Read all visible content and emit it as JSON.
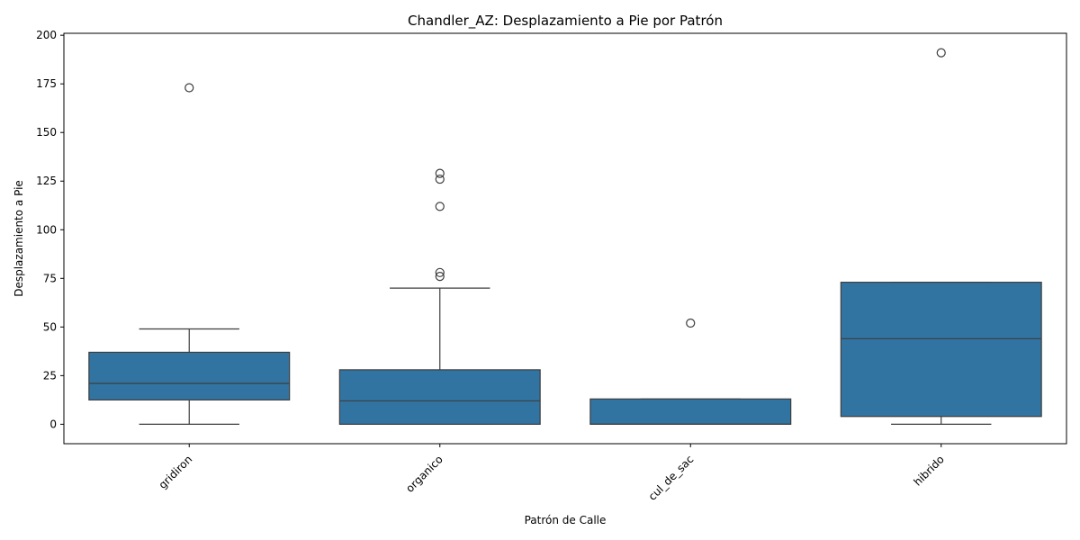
{
  "chart_data": {
    "type": "box",
    "title": "Chandler_AZ: Desplazamiento a Pie por Patrón",
    "xlabel": "Patrón de Calle",
    "ylabel": "Desplazamiento a Pie",
    "ylim": [
      -10,
      201
    ],
    "yticks": [
      0,
      25,
      50,
      75,
      100,
      125,
      150,
      175,
      200
    ],
    "categories": [
      "gridiron",
      "organico",
      "cul_de_sac",
      "hibrido"
    ],
    "boxes": [
      {
        "category": "gridiron",
        "whisker_low": 0,
        "q1": 12.5,
        "median": 21,
        "q3": 37,
        "whisker_high": 49,
        "outliers": [
          173
        ]
      },
      {
        "category": "organico",
        "whisker_low": 0,
        "q1": 0,
        "median": 12,
        "q3": 28,
        "whisker_high": 70,
        "outliers": [
          76,
          78,
          112,
          126,
          129
        ]
      },
      {
        "category": "cul_de_sac",
        "whisker_low": 0,
        "q1": 0,
        "median": 0,
        "q3": 13,
        "whisker_high": 13,
        "outliers": [
          52
        ]
      },
      {
        "category": "hibrido",
        "whisker_low": 0,
        "q1": 4,
        "median": 44,
        "q3": 73,
        "whisker_high": 73,
        "outliers": [
          191
        ]
      }
    ],
    "box_color": "#3274a1",
    "grid": false,
    "legend": "none"
  }
}
